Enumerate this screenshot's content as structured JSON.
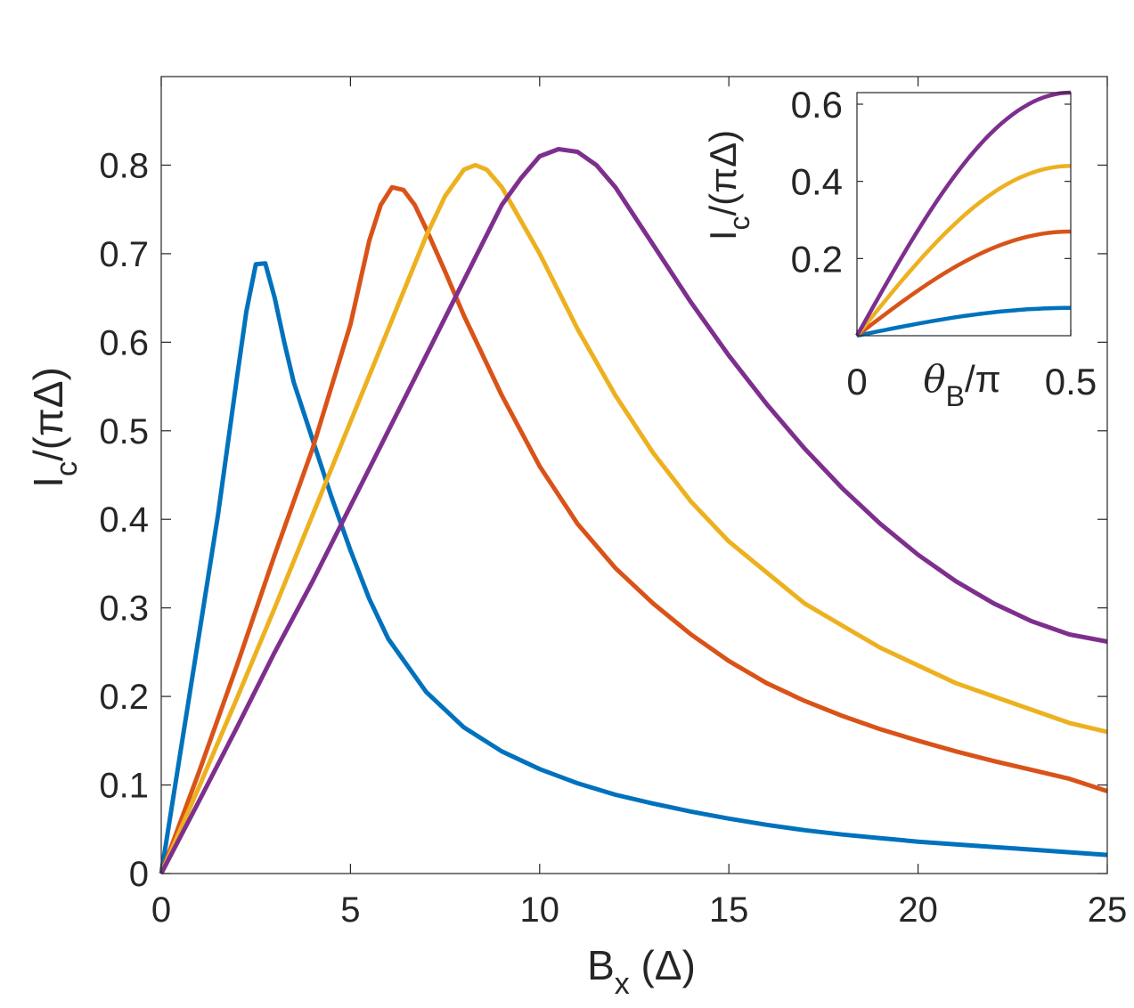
{
  "main": {
    "chart_data": {
      "type": "line",
      "xlabel": {
        "main": "B",
        "sub": "x",
        "rest": " (Δ)"
      },
      "ylabel": {
        "main": "I",
        "sub": "c",
        "rest": "/(πΔ)"
      },
      "xlim": [
        0,
        25
      ],
      "ylim": [
        0,
        0.9
      ],
      "xticks": [
        0,
        5,
        10,
        15,
        20,
        25
      ],
      "yticks": [
        0,
        0.1,
        0.2,
        0.3,
        0.4,
        0.5,
        0.6,
        0.7,
        0.8
      ],
      "ytick_labels": [
        "0",
        "0.1",
        "0.2",
        "0.3",
        "0.4",
        "0.5",
        "0.6",
        "0.7",
        "0.8"
      ],
      "grid": false,
      "series": [
        {
          "color": "#0072BD",
          "x": [
            0,
            0.5,
            1.0,
            1.5,
            2.0,
            2.25,
            2.5,
            2.75,
            3.0,
            3.25,
            3.5,
            4,
            4.5,
            5,
            5.5,
            6,
            7,
            8,
            9,
            10,
            11,
            12,
            13,
            14,
            15,
            16,
            17,
            18,
            19,
            20,
            21,
            22,
            23,
            24,
            25
          ],
          "y": [
            0,
            0.135,
            0.27,
            0.405,
            0.56,
            0.635,
            0.688,
            0.689,
            0.65,
            0.6,
            0.555,
            0.49,
            0.425,
            0.365,
            0.31,
            0.265,
            0.205,
            0.165,
            0.138,
            0.118,
            0.102,
            0.089,
            0.079,
            0.07,
            0.062,
            0.055,
            0.049,
            0.044,
            0.04,
            0.036,
            0.033,
            0.03,
            0.027,
            0.024,
            0.021
          ]
        },
        {
          "color": "#D95319",
          "x": [
            0,
            1,
            2,
            3,
            4,
            5,
            5.5,
            5.8,
            6.1,
            6.4,
            6.7,
            7.0,
            7.5,
            8,
            9,
            10,
            11,
            12,
            13,
            14,
            15,
            16,
            17,
            18,
            19,
            20,
            21,
            22,
            23,
            24,
            25
          ],
          "y": [
            0,
            0.115,
            0.235,
            0.36,
            0.48,
            0.62,
            0.715,
            0.755,
            0.775,
            0.772,
            0.755,
            0.728,
            0.68,
            0.63,
            0.54,
            0.46,
            0.395,
            0.345,
            0.305,
            0.27,
            0.24,
            0.215,
            0.195,
            0.178,
            0.163,
            0.15,
            0.138,
            0.127,
            0.117,
            0.107,
            0.093
          ]
        },
        {
          "color": "#EDB120",
          "x": [
            0,
            1,
            2,
            3,
            4,
            5,
            6,
            7,
            7.5,
            8.0,
            8.3,
            8.6,
            9.0,
            10,
            11,
            12,
            13,
            14,
            15,
            16,
            17,
            18,
            19,
            20,
            21,
            22,
            23,
            24,
            25
          ],
          "y": [
            0,
            0.098,
            0.198,
            0.3,
            0.405,
            0.51,
            0.615,
            0.72,
            0.765,
            0.795,
            0.8,
            0.795,
            0.775,
            0.7,
            0.615,
            0.54,
            0.475,
            0.42,
            0.375,
            0.34,
            0.305,
            0.28,
            0.255,
            0.235,
            0.215,
            0.2,
            0.185,
            0.17,
            0.16
          ]
        },
        {
          "color": "#7E2F8E",
          "x": [
            0,
            1,
            2,
            3,
            4,
            5,
            6,
            7,
            8,
            9,
            9.5,
            10.0,
            10.5,
            11.0,
            11.5,
            12,
            13,
            14,
            15,
            16,
            17,
            18,
            19,
            20,
            21,
            22,
            23,
            24,
            25
          ],
          "y": [
            0,
            0.082,
            0.165,
            0.25,
            0.33,
            0.415,
            0.5,
            0.585,
            0.67,
            0.755,
            0.785,
            0.81,
            0.818,
            0.815,
            0.8,
            0.775,
            0.71,
            0.645,
            0.585,
            0.53,
            0.48,
            0.435,
            0.395,
            0.36,
            0.33,
            0.305,
            0.285,
            0.27,
            0.262
          ]
        }
      ]
    },
    "inset": {
      "chart_data": {
        "type": "line",
        "xlabel": {
          "main": "θ",
          "sub": "B",
          "rest": "/π"
        },
        "ylabel": {
          "main": "I",
          "sub": "c",
          "rest": "/(πΔ)"
        },
        "xlim": [
          0,
          0.5
        ],
        "ylim": [
          0,
          0.63
        ],
        "xticks": [
          0,
          0.5
        ],
        "xtick_labels": [
          "0",
          "0.5"
        ],
        "yticks": [
          0.2,
          0.4,
          0.6
        ],
        "ytick_labels": [
          "0.2",
          "0.4",
          "0.6"
        ],
        "grid": false,
        "series": [
          {
            "color": "#0072BD",
            "amplitude": 0.072
          },
          {
            "color": "#D95319",
            "amplitude": 0.27
          },
          {
            "color": "#EDB120",
            "amplitude": 0.44
          },
          {
            "color": "#7E2F8E",
            "amplitude": 0.63
          }
        ]
      }
    }
  }
}
